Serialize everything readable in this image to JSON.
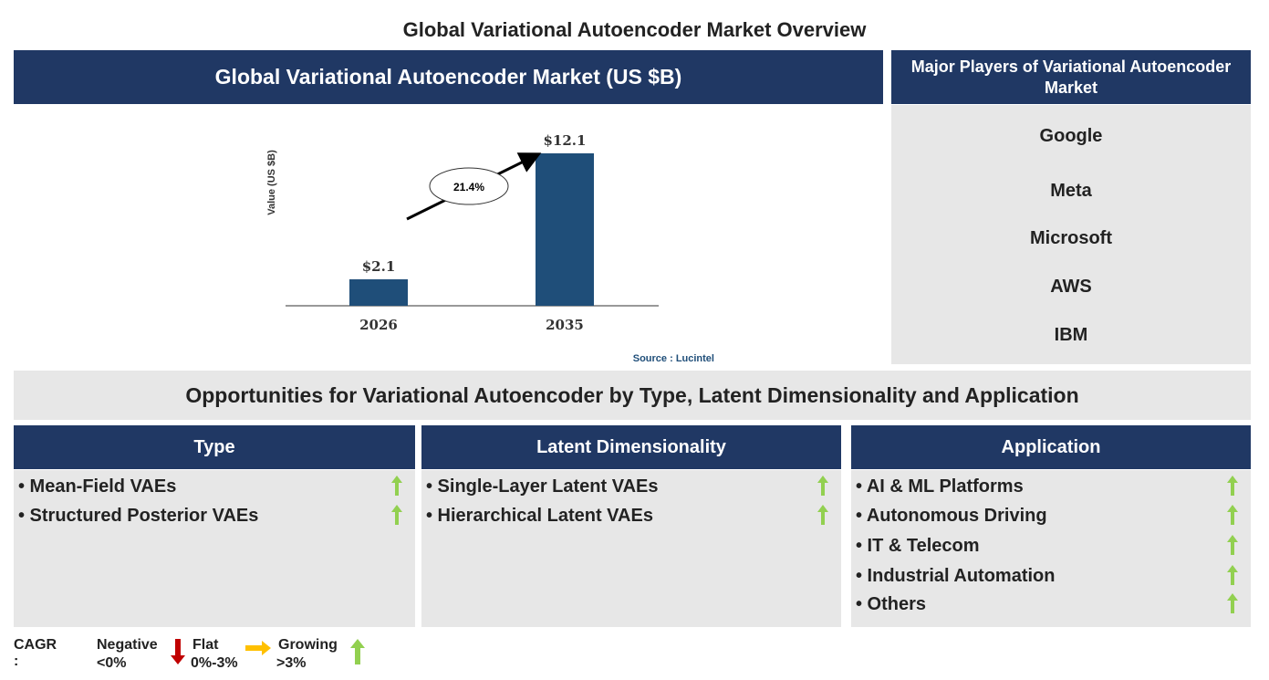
{
  "title": "Global Variational Autoencoder Market Overview",
  "market_header": "Global Variational Autoencoder Market (US $B)",
  "chart_data": {
    "type": "bar",
    "categories": [
      "2026",
      "2035"
    ],
    "values": [
      2.1,
      12.1
    ],
    "data_labels": [
      "$2.1",
      "$12.1"
    ],
    "ylabel": "Value (US $B)",
    "annotation": "21.4%",
    "source": "Source : Lucintel",
    "bar_color": "#1f4e79"
  },
  "players": {
    "header": "Major Players of Variational Autoencoder Market",
    "items": [
      "Google",
      "Meta",
      "Microsoft",
      "AWS",
      "IBM"
    ]
  },
  "opportunities_title": "Opportunities for Variational Autoencoder by Type, Latent Dimensionality and Application",
  "columns": [
    {
      "header": "Type",
      "items": [
        {
          "label": "• Mean-Field VAEs",
          "trend": "growing"
        },
        {
          "label": "• Structured Posterior VAEs",
          "trend": "growing"
        }
      ]
    },
    {
      "header": "Latent Dimensionality",
      "items": [
        {
          "label": "• Single-Layer Latent VAEs",
          "trend": "growing"
        },
        {
          "label": "• Hierarchical Latent VAEs",
          "trend": "growing"
        }
      ]
    },
    {
      "header": "Application",
      "items": [
        {
          "label": "• AI & ML Platforms",
          "trend": "growing"
        },
        {
          "label": "• Autonomous Driving",
          "trend": "growing"
        },
        {
          "label": "• IT & Telecom",
          "trend": "growing"
        },
        {
          "label": "• Industrial Automation",
          "trend": "growing"
        },
        {
          "label": "• Others",
          "trend": "growing"
        }
      ]
    }
  ],
  "legend": {
    "label": "CAGR :",
    "negative": "Negative",
    "negative_range": "<0%",
    "flat": "Flat",
    "flat_range": "0%-3%",
    "growing": "Growing",
    "growing_range": ">3%"
  },
  "colors": {
    "navy": "#203864",
    "panel": "#e7e7e7",
    "up": "#92d050",
    "down": "#c00000",
    "flat": "#ffc000"
  }
}
